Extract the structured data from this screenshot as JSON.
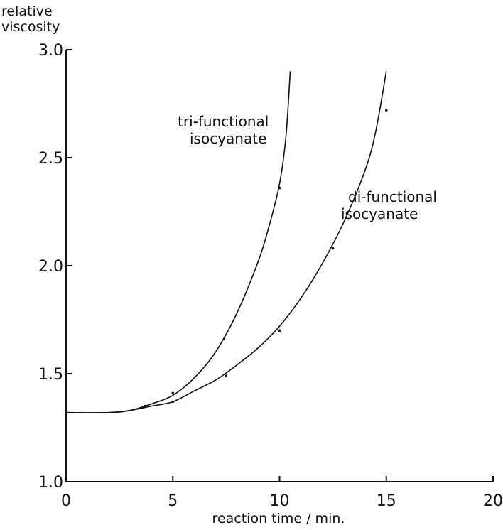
{
  "chart_data": {
    "type": "line",
    "ylabel": [
      "relative",
      "viscosity"
    ],
    "xlabel": "reaction time / min.",
    "xlim": [
      0,
      20
    ],
    "ylim": [
      1.0,
      3.0
    ],
    "xticks": [
      0,
      5,
      10,
      15,
      20
    ],
    "yticks": [
      "1.0",
      "1.5",
      "2.0",
      "2.5",
      "3.0"
    ],
    "grid": false,
    "series": [
      {
        "name": "tri-functional isocyanate",
        "label_lines": [
          "tri-functional",
          "isocyanate"
        ],
        "curve": [
          [
            0,
            1.32
          ],
          [
            2,
            1.32
          ],
          [
            3,
            1.33
          ],
          [
            4,
            1.36
          ],
          [
            5,
            1.4
          ],
          [
            6,
            1.48
          ],
          [
            7,
            1.6
          ],
          [
            8,
            1.78
          ],
          [
            9,
            2.02
          ],
          [
            9.5,
            2.18
          ],
          [
            10,
            2.38
          ],
          [
            10.3,
            2.6
          ],
          [
            10.5,
            2.9
          ]
        ],
        "points": [
          [
            3.7,
            1.35
          ],
          [
            5,
            1.41
          ],
          [
            7.4,
            1.66
          ],
          [
            10,
            2.36
          ]
        ]
      },
      {
        "name": "di-functional isocyanate",
        "label_lines": [
          "di-functional",
          "isocyanate"
        ],
        "curve": [
          [
            0,
            1.32
          ],
          [
            2,
            1.32
          ],
          [
            3,
            1.33
          ],
          [
            4,
            1.35
          ],
          [
            5,
            1.37
          ],
          [
            6,
            1.42
          ],
          [
            7,
            1.47
          ],
          [
            8,
            1.54
          ],
          [
            9,
            1.62
          ],
          [
            10,
            1.72
          ],
          [
            11,
            1.85
          ],
          [
            12,
            2.01
          ],
          [
            13,
            2.2
          ],
          [
            14,
            2.44
          ],
          [
            14.5,
            2.62
          ],
          [
            15,
            2.9
          ]
        ],
        "points": [
          [
            5,
            1.37
          ],
          [
            7.5,
            1.49
          ],
          [
            10,
            1.7
          ],
          [
            12.5,
            2.08
          ],
          [
            15,
            2.72
          ]
        ]
      }
    ]
  }
}
